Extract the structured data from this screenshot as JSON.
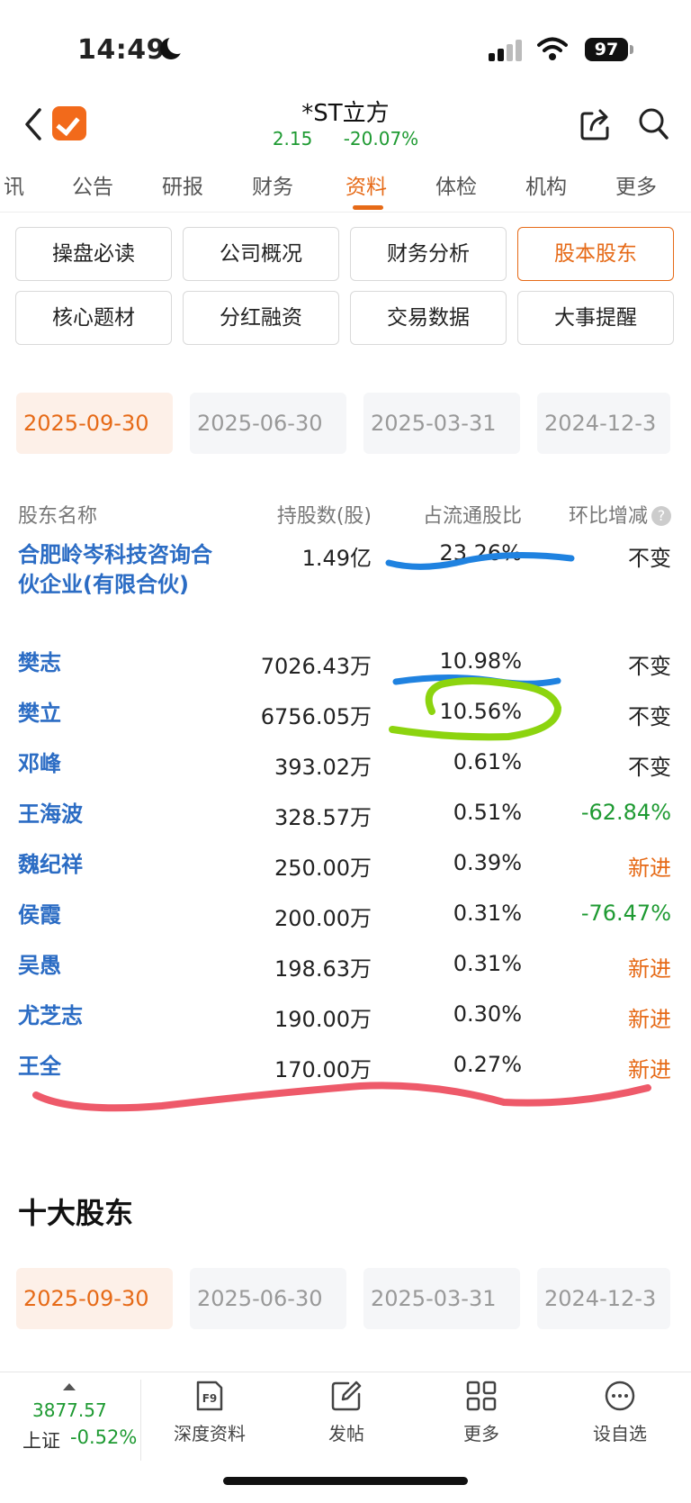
{
  "status": {
    "time": "14:49",
    "battery": "97"
  },
  "header": {
    "title": "*ST立方",
    "price": "2.15",
    "change_pct": "-20.07%"
  },
  "tabs": [
    {
      "label": "讯"
    },
    {
      "label": "公告"
    },
    {
      "label": "研报"
    },
    {
      "label": "财务"
    },
    {
      "label": "资料"
    },
    {
      "label": "体检"
    },
    {
      "label": "机构"
    },
    {
      "label": "更多"
    }
  ],
  "active_tab": "资料",
  "buttons": [
    {
      "label": "操盘必读"
    },
    {
      "label": "公司概况"
    },
    {
      "label": "财务分析"
    },
    {
      "label": "股本股东"
    },
    {
      "label": "核心题材"
    },
    {
      "label": "分红融资"
    },
    {
      "label": "交易数据"
    },
    {
      "label": "大事提醒"
    }
  ],
  "dates": [
    {
      "label": "2025-09-30"
    },
    {
      "label": "2025-06-30"
    },
    {
      "label": "2025-03-31"
    },
    {
      "label": "2024-12-3"
    }
  ],
  "table": {
    "headers": {
      "name": "股东名称",
      "shares": "持股数(股)",
      "ratio": "占流通股比",
      "change": "环比增减"
    },
    "rows": [
      {
        "name": "合肥岭岑科技咨询合伙企业(有限合伙)",
        "shares": "1.49亿",
        "ratio": "23.26%",
        "change": "不变",
        "status": "neutral"
      },
      {
        "name": "樊志",
        "shares": "7026.43万",
        "ratio": "10.98%",
        "change": "不变",
        "status": "neutral"
      },
      {
        "name": "樊立",
        "shares": "6756.05万",
        "ratio": "10.56%",
        "change": "不变",
        "status": "neutral"
      },
      {
        "name": "邓峰",
        "shares": "393.02万",
        "ratio": "0.61%",
        "change": "不变",
        "status": "neutral"
      },
      {
        "name": "王海波",
        "shares": "328.57万",
        "ratio": "0.51%",
        "change": "-62.84%",
        "status": "down"
      },
      {
        "name": "魏纪祥",
        "shares": "250.00万",
        "ratio": "0.39%",
        "change": "新进",
        "status": "new"
      },
      {
        "name": "侯霞",
        "shares": "200.00万",
        "ratio": "0.31%",
        "change": "-76.47%",
        "status": "down"
      },
      {
        "name": "吴愚",
        "shares": "198.63万",
        "ratio": "0.31%",
        "change": "新进",
        "status": "new"
      },
      {
        "name": "尤芝志",
        "shares": "190.00万",
        "ratio": "0.30%",
        "change": "新进",
        "status": "new"
      },
      {
        "name": "王全",
        "shares": "170.00万",
        "ratio": "0.27%",
        "change": "新进",
        "status": "new"
      }
    ]
  },
  "section2": {
    "title": "十大股东"
  },
  "dates2": [
    {
      "label": "2025-09-30"
    },
    {
      "label": "2025-06-30"
    },
    {
      "label": "2025-03-31"
    },
    {
      "label": "2024-12-3"
    }
  ],
  "bottom": {
    "index_value": "3877.57",
    "index_name": "上证",
    "index_change": "-0.52%",
    "nav": [
      {
        "label": "深度资料",
        "icon": "f9-icon",
        "icon_text": "F9"
      },
      {
        "label": "发帖",
        "icon": "edit-icon"
      },
      {
        "label": "更多",
        "icon": "grid-icon"
      },
      {
        "label": "设自选",
        "icon": "more-dots-icon"
      }
    ]
  },
  "colors": {
    "accent": "#e66a17",
    "link": "#2b6cc4",
    "down": "#1e9a32",
    "annot_blue": "#1f82e0",
    "annot_green": "#8cd40f",
    "annot_red": "#ee5a6a"
  }
}
